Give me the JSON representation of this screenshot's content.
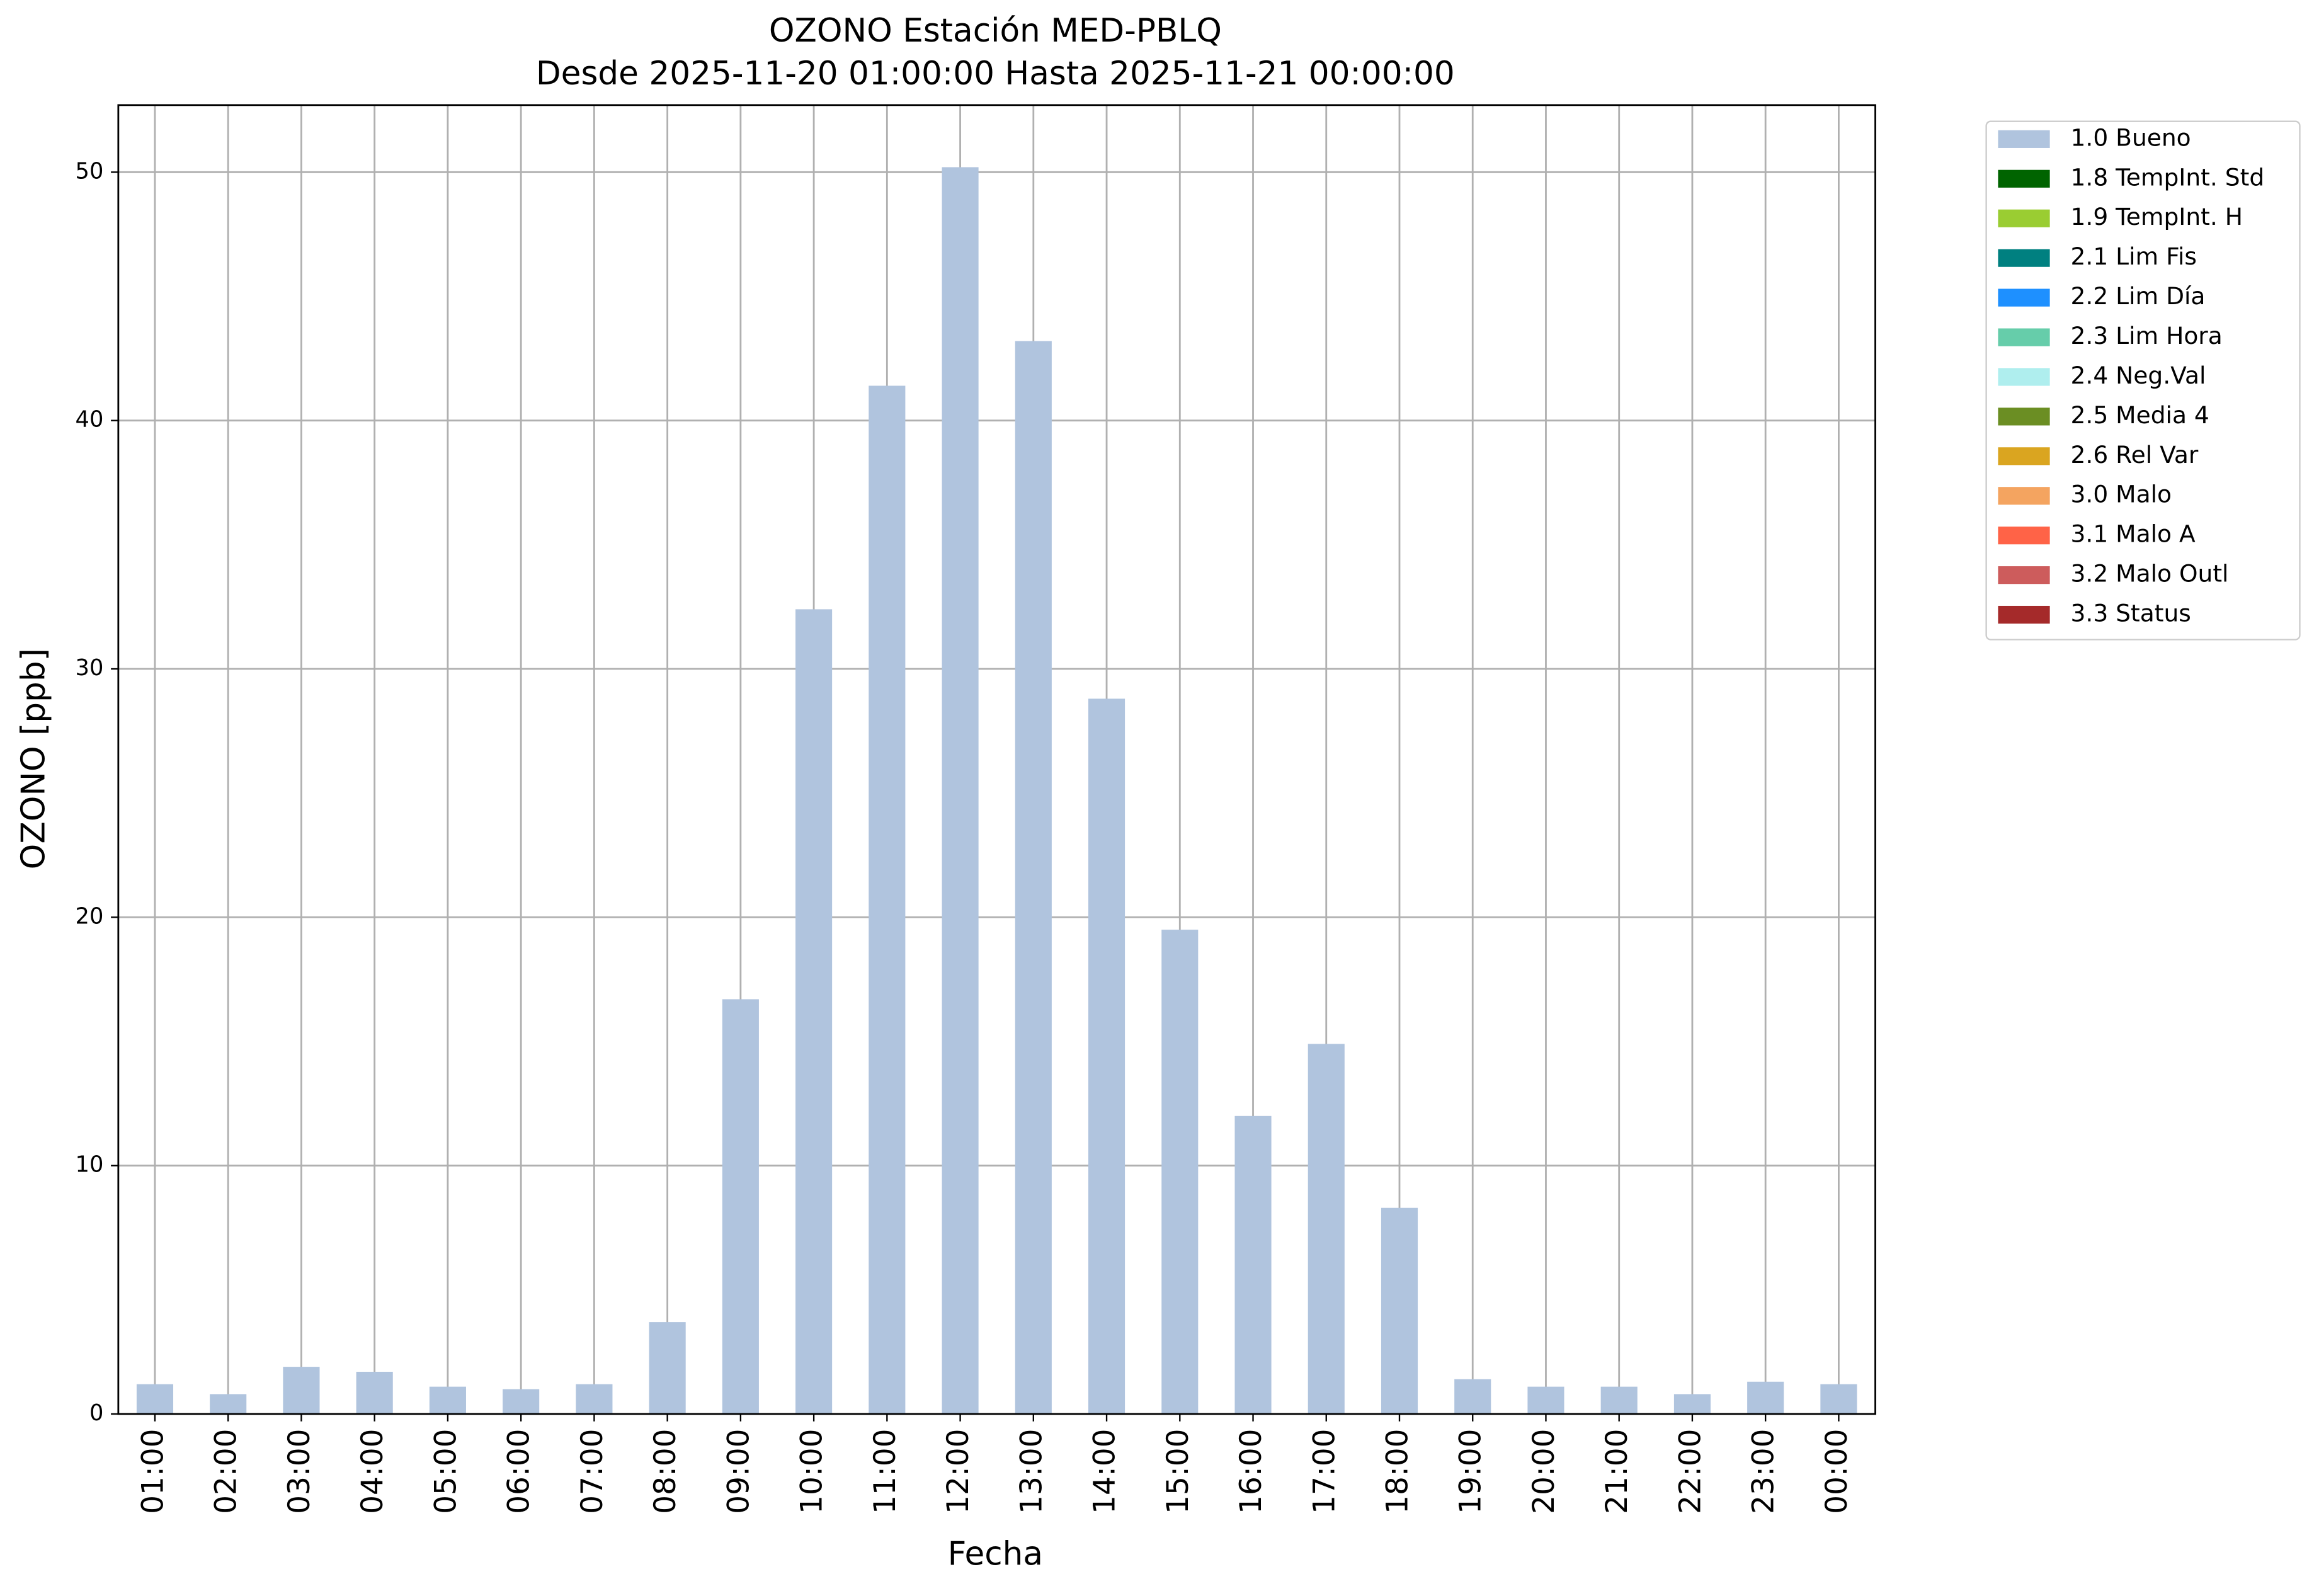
{
  "chart_data": {
    "type": "bar",
    "stacked": true,
    "title": "OZONO Estación MED-PBLQ",
    "subtitle": "Desde 2025-11-20 01:00:00 Hasta 2025-11-21 00:00:00",
    "x_label": "Fecha",
    "y_label": "OZONO [ppb]",
    "categories": [
      "01:00",
      "02:00",
      "03:00",
      "04:00",
      "05:00",
      "06:00",
      "07:00",
      "08:00",
      "09:00",
      "10:00",
      "11:00",
      "12:00",
      "13:00",
      "14:00",
      "15:00",
      "16:00",
      "17:00",
      "18:00",
      "19:00",
      "20:00",
      "21:00",
      "22:00",
      "23:00",
      "00:00"
    ],
    "series": [
      {
        "name": "1.0 Bueno",
        "color": "#b0c4de",
        "values": [
          1.2,
          0.8,
          1.9,
          1.7,
          1.1,
          1.0,
          1.2,
          3.7,
          16.7,
          32.4,
          41.4,
          50.2,
          43.2,
          28.8,
          19.5,
          12.0,
          14.9,
          8.3,
          1.4,
          1.1,
          1.1,
          0.8,
          1.3,
          1.2
        ]
      },
      {
        "name": "1.8 TempInt. Std",
        "color": "#006400"
      },
      {
        "name": "1.9 TempInt. H",
        "color": "#9acd32"
      },
      {
        "name": "2.1 Lim Fis",
        "color": "#008080"
      },
      {
        "name": "2.2 Lim Día",
        "color": "#1e90ff"
      },
      {
        "name": "2.3 Lim Hora",
        "color": "#66cdaa"
      },
      {
        "name": "2.4 Neg.Val",
        "color": "#afeeee"
      },
      {
        "name": "2.5 Media 4",
        "color": "#6b8e23"
      },
      {
        "name": "2.6 Rel Var",
        "color": "#daa520"
      },
      {
        "name": "3.0 Malo",
        "color": "#f4a460"
      },
      {
        "name": "3.1 Malo A",
        "color": "#ff6347"
      },
      {
        "name": "3.2 Malo Outl",
        "color": "#cd5c5c"
      },
      {
        "name": "3.3 Status",
        "color": "#a52a2a"
      }
    ],
    "ylim": [
      0,
      52.7
    ],
    "yticks": [
      0,
      10,
      20,
      30,
      40,
      50
    ],
    "grid": true,
    "legend": "outside-right"
  }
}
